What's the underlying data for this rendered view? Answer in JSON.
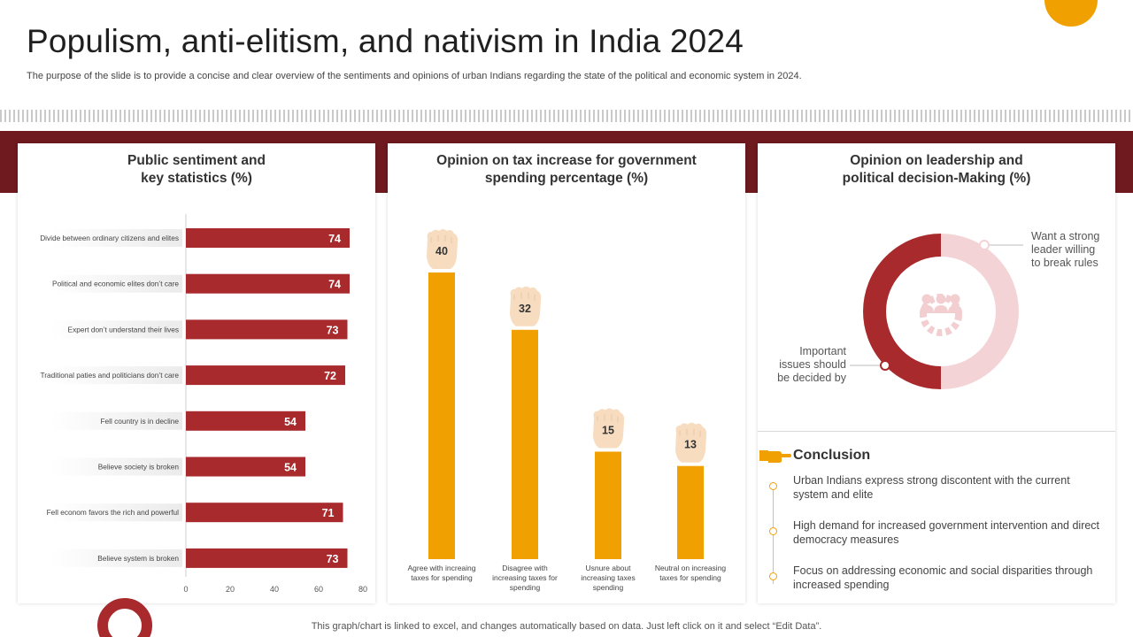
{
  "header": {
    "title": "Populism, anti-elitism, and nativism in India 2024",
    "subtitle": "The purpose of the slide is to provide a concise and clear overview of the sentiments and opinions of urban Indians regarding the state of the political and economic system in 2024."
  },
  "colors": {
    "accent_orange": "#f0a000",
    "accent_red": "#a82a2c",
    "band_dark": "#6e1a1e",
    "donut_light": "#f3d3d5"
  },
  "panel1": {
    "title": "Public sentiment and\nkey statistics (%)"
  },
  "panel2": {
    "title": "Opinion on tax increase for government\nspending percentage (%)"
  },
  "panel3": {
    "title": "Opinion on leadership and\npolitical decision-Making (%)",
    "donut_icon": "team-gear-icon"
  },
  "conclusion": {
    "icon": "pointing-hand-icon",
    "title": "Conclusion",
    "items": [
      "Urban Indians express strong discontent with the current system and elite",
      "High demand for increased government intervention and direct democracy measures",
      "Focus on addressing economic and social disparities through increased spending"
    ]
  },
  "footer": {
    "note": "This graph/chart is linked to excel, and changes automatically based on data. Just left click on it and select “Edit Data”."
  },
  "chart_data": [
    {
      "type": "bar",
      "orientation": "horizontal",
      "title": "Public sentiment and key statistics (%)",
      "categories": [
        "Divide between ordinary citizens and elites",
        "Political and economic elites don’t care",
        "Expert don’t understand their lives",
        "Traditional paties and politicians don’t care",
        "Fell country is in decline",
        "Believe society is broken",
        "Fell econom favors the rich and powerful",
        "Believe system is broken"
      ],
      "values": [
        74,
        74,
        73,
        72,
        54,
        54,
        71,
        73
      ],
      "xlim": [
        0,
        80
      ],
      "xticks": [
        0,
        20,
        40,
        60,
        80
      ],
      "color": "#a82a2c",
      "data_labels": true
    },
    {
      "type": "bar",
      "orientation": "vertical",
      "title": "Opinion on tax increase for government spending percentage (%)",
      "categories": [
        "Agree with increaing taxes for spending",
        "Disagree with increasing taxes for spending",
        "Usnure about increasing taxes spending",
        "Neutral on increasing taxes for spending"
      ],
      "values": [
        40,
        32,
        15,
        13
      ],
      "ylim": [
        0,
        40
      ],
      "color": "#f0a000",
      "marker_icon": "raised-fist-icon",
      "data_labels": true
    },
    {
      "type": "pie",
      "style": "donut",
      "title": "Opinion on leadership and political decision-Making (%)",
      "labels": [
        "Want a strong leader willing to break rules",
        "Important issues should be decided by"
      ],
      "values": [
        50,
        50
      ],
      "colors": [
        "#f3d3d5",
        "#a82a2c"
      ]
    }
  ]
}
